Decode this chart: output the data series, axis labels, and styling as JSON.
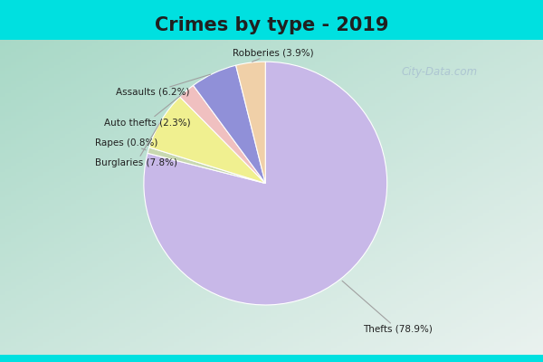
{
  "title": "Crimes by type - 2019",
  "title_fontsize": 15,
  "slices": [
    {
      "label": "Thefts",
      "pct": 78.9,
      "color": "#c8b8e8"
    },
    {
      "label": "Rapes",
      "pct": 0.8,
      "color": "#c8d8b0"
    },
    {
      "label": "Burglaries",
      "pct": 7.8,
      "color": "#f0f090"
    },
    {
      "label": "Auto thefts",
      "pct": 2.3,
      "color": "#f0c0c0"
    },
    {
      "label": "Assaults",
      "pct": 6.2,
      "color": "#9090d8"
    },
    {
      "label": "Robberies",
      "pct": 3.9,
      "color": "#f0d0a8"
    }
  ],
  "outer_bg": "#00e0e0",
  "inner_bg_topleft": "#a0d8c8",
  "inner_bg_bottomright": "#e8f0f8",
  "text_color": "#202020",
  "line_color": "#a0a0a0",
  "watermark": "City-Data.com",
  "watermark_color": "#a8c0d0"
}
